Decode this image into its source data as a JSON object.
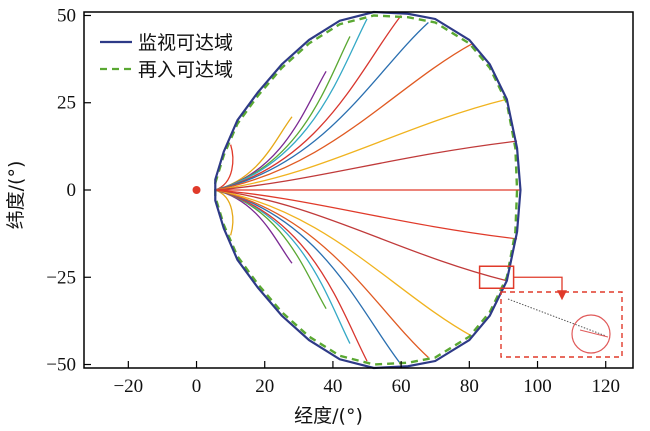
{
  "chart_data": {
    "type": "line",
    "xlabel": "经度/(°)",
    "ylabel": "纬度/(°)",
    "xlim": [
      -33,
      128
    ],
    "ylim": [
      -51,
      51
    ],
    "xticks": [
      "−20",
      "0",
      "20",
      "40",
      "60",
      "80",
      "100",
      "120"
    ],
    "xtick_values": [
      -20,
      0,
      20,
      40,
      60,
      80,
      100,
      120
    ],
    "yticks": [
      "50",
      "25",
      "0",
      "−25",
      "−50"
    ],
    "ytick_values": [
      50,
      25,
      0,
      -25,
      -50
    ],
    "grid": false,
    "legend_position": "top-left",
    "legend": [
      {
        "label": "监视可达域",
        "style": "solid",
        "color": "#2e3a87"
      },
      {
        "label": "再入可达域",
        "style": "dashed",
        "color": "#5aa832"
      }
    ],
    "launch_point": {
      "x": 0,
      "y": 0,
      "color": "#e03a2a"
    },
    "monitor_boundary": [
      [
        5.5,
        3
      ],
      [
        8,
        11
      ],
      [
        12,
        20
      ],
      [
        18,
        28
      ],
      [
        25,
        36
      ],
      [
        33,
        43
      ],
      [
        42,
        48.5
      ],
      [
        52,
        51
      ],
      [
        62,
        50.5
      ],
      [
        70,
        49
      ],
      [
        80,
        43
      ],
      [
        86,
        36
      ],
      [
        91,
        26
      ],
      [
        94,
        12
      ],
      [
        95,
        0
      ],
      [
        94,
        -12
      ],
      [
        91,
        -26
      ],
      [
        86,
        -36
      ],
      [
        80,
        -43
      ],
      [
        70,
        -49
      ],
      [
        62,
        -50.5
      ],
      [
        52,
        -51
      ],
      [
        42,
        -48.5
      ],
      [
        33,
        -43
      ],
      [
        25,
        -36
      ],
      [
        18,
        -28
      ],
      [
        12,
        -20
      ],
      [
        8,
        -11
      ],
      [
        5.5,
        -3
      ]
    ],
    "reentry_boundary": [
      [
        5.5,
        2
      ],
      [
        8,
        10
      ],
      [
        12,
        19
      ],
      [
        18,
        27
      ],
      [
        25,
        35
      ],
      [
        33,
        42
      ],
      [
        42,
        47.5
      ],
      [
        52,
        50
      ],
      [
        62,
        49.5
      ],
      [
        70,
        48
      ],
      [
        80,
        42
      ],
      [
        86,
        35
      ],
      [
        91,
        25
      ],
      [
        93.5,
        12
      ],
      [
        94,
        0
      ],
      [
        93.5,
        -12
      ],
      [
        91,
        -25
      ],
      [
        86,
        -35
      ],
      [
        80,
        -42
      ],
      [
        70,
        -48
      ],
      [
        62,
        -49.5
      ],
      [
        52,
        -50
      ],
      [
        42,
        -47.5
      ],
      [
        33,
        -42
      ],
      [
        25,
        -35
      ],
      [
        18,
        -27
      ],
      [
        12,
        -19
      ],
      [
        8,
        -10
      ],
      [
        5.5,
        -2
      ]
    ],
    "trajectory_colors": [
      "#e03a2a",
      "#e6a817",
      "#7b2a93",
      "#5aa832",
      "#35a9c6",
      "#d8362e",
      "#2a6fb0",
      "#e05a22",
      "#f0b31f",
      "#c03a3a"
    ],
    "trajectory_endpoints": [
      [
        10,
        13
      ],
      [
        28,
        21
      ],
      [
        38,
        34
      ],
      [
        45,
        44
      ],
      [
        50,
        49
      ],
      [
        60,
        50
      ],
      [
        68,
        48
      ],
      [
        81,
        42
      ],
      [
        91,
        26
      ],
      [
        94,
        14
      ],
      [
        95,
        0
      ],
      [
        10,
        -13
      ],
      [
        28,
        -21
      ],
      [
        38,
        -34
      ],
      [
        45,
        -44
      ],
      [
        50,
        -49
      ],
      [
        60,
        -50
      ],
      [
        68,
        -48
      ],
      [
        81,
        -42
      ],
      [
        91,
        -26
      ],
      [
        94,
        -14
      ]
    ],
    "inset": {
      "zoom_box_center": [
        88,
        -25
      ],
      "frame_color": "#e03a2a"
    }
  }
}
